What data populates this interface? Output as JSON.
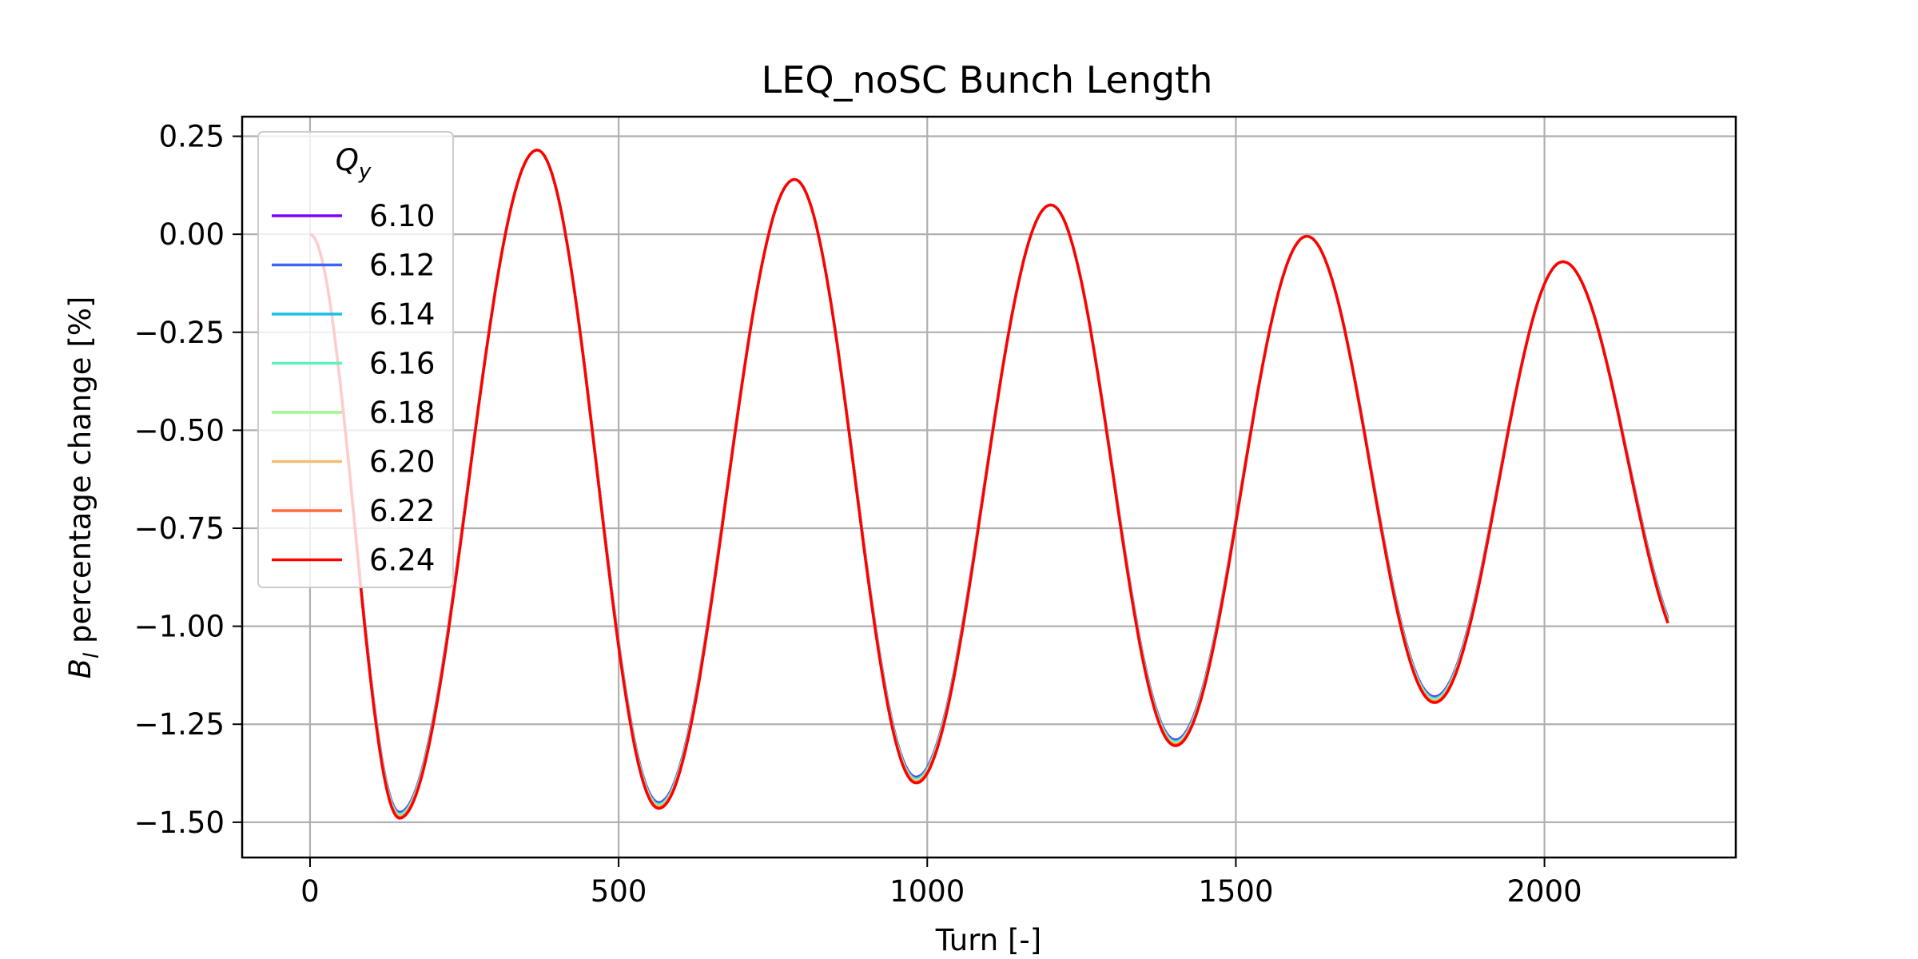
{
  "chart_data": {
    "type": "line",
    "title": "LEQ_noSC Bunch Length",
    "xlabel": "Turn [-]",
    "ylabel_main": "B",
    "ylabel_sub": "l",
    "ylabel_rest": " percentage change [%]",
    "xlim": [
      -110,
      2310
    ],
    "ylim": [
      -1.59,
      0.3
    ],
    "xticks": [
      0,
      500,
      1000,
      1500,
      2000
    ],
    "xtick_labels": [
      "0",
      "500",
      "1000",
      "1500",
      "2000"
    ],
    "yticks": [
      0.25,
      0.0,
      -0.25,
      -0.5,
      -0.75,
      -1.0,
      -1.25,
      -1.5
    ],
    "ytick_labels": [
      "0.25",
      "0.00",
      "−0.25",
      "−0.50",
      "−0.75",
      "−1.00",
      "−1.25",
      "−1.50"
    ],
    "grid": true,
    "legend_position": "top-left",
    "legend_title_main": "Q",
    "legend_title_sub": "y",
    "x_range": [
      0,
      2200
    ],
    "oscillation": {
      "minima": [
        {
          "turn": 145,
          "value": -1.49
        },
        {
          "turn": 565,
          "value": -1.465
        },
        {
          "turn": 982,
          "value": -1.4
        },
        {
          "turn": 1402,
          "value": -1.305
        },
        {
          "turn": 1822,
          "value": -1.195
        }
      ],
      "maxima": [
        {
          "turn": 0,
          "value": 0.0
        },
        {
          "turn": 368,
          "value": 0.215
        },
        {
          "turn": 785,
          "value": 0.14
        },
        {
          "turn": 1200,
          "value": 0.075
        },
        {
          "turn": 1615,
          "value": -0.005
        },
        {
          "turn": 2030,
          "value": -0.07
        }
      ],
      "end": {
        "turn": 2200,
        "value": -0.98
      }
    },
    "series": [
      {
        "name": "6.10",
        "color": "#8000ff",
        "min_offset": 0.015
      },
      {
        "name": "6.12",
        "color": "#3a66f0",
        "min_offset": 0.013
      },
      {
        "name": "6.14",
        "color": "#19c0e8",
        "min_offset": 0.011
      },
      {
        "name": "6.16",
        "color": "#5cf0c0",
        "min_offset": 0.009
      },
      {
        "name": "6.18",
        "color": "#a0f890",
        "min_offset": 0.006
      },
      {
        "name": "6.20",
        "color": "#f0c070",
        "min_offset": 0.004
      },
      {
        "name": "6.22",
        "color": "#ff6a3a",
        "min_offset": 0.002
      },
      {
        "name": "6.24",
        "color": "#ff0000",
        "min_offset": 0.0
      }
    ]
  }
}
